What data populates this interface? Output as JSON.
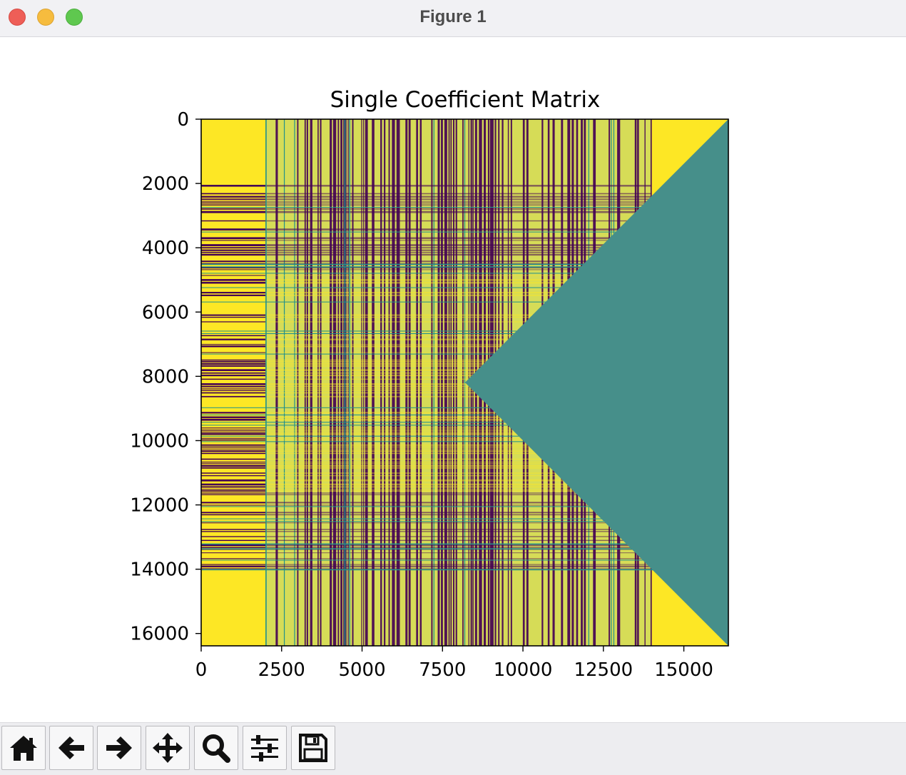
{
  "window": {
    "title": "Figure 1"
  },
  "toolbar": {
    "buttons": [
      {
        "name": "home-button",
        "icon": "home-icon"
      },
      {
        "name": "back-button",
        "icon": "arrow-left-icon"
      },
      {
        "name": "forward-button",
        "icon": "arrow-right-icon"
      },
      {
        "name": "pan-button",
        "icon": "move-icon"
      },
      {
        "name": "zoom-button",
        "icon": "magnifier-icon"
      },
      {
        "name": "configure-subplots-button",
        "icon": "sliders-icon"
      },
      {
        "name": "save-button",
        "icon": "floppy-disk-icon"
      }
    ]
  },
  "colors": {
    "low": "#440154",
    "mid": "#21918c",
    "high": "#fde725",
    "masked": "#468f8a"
  },
  "chart_data": {
    "type": "heatmap",
    "title": "Single Coefficient Matrix",
    "xlabel": "",
    "ylabel": "",
    "xlim": [
      0,
      16384
    ],
    "ylim": [
      16384,
      0
    ],
    "x_ticks": [
      0,
      2500,
      5000,
      7500,
      10000,
      12500,
      15000
    ],
    "x_tick_labels": [
      "0",
      "2500",
      "5000",
      "7500",
      "10000",
      "12500",
      "15000"
    ],
    "y_ticks": [
      0,
      2000,
      4000,
      6000,
      8000,
      10000,
      12000,
      14000,
      16000
    ],
    "y_tick_labels": [
      "0",
      "2000",
      "4000",
      "6000",
      "8000",
      "10000",
      "12000",
      "14000",
      "16000"
    ],
    "colormap": "viridis",
    "regions": {
      "yellow_columns": [
        [
          0,
          2000
        ],
        [
          14000,
          16384
        ]
      ],
      "yellow_rows": [
        [
          0,
          2000
        ],
        [
          14000,
          16384
        ]
      ],
      "striped_columns": [
        2000,
        14000
      ],
      "striped_rows": [
        2000,
        14000
      ],
      "masked_triangle": {
        "vertices": [
          [
            8200,
            8192
          ],
          [
            16384,
            0
          ],
          [
            16384,
            16384
          ]
        ],
        "color": "#468f8a"
      }
    }
  }
}
